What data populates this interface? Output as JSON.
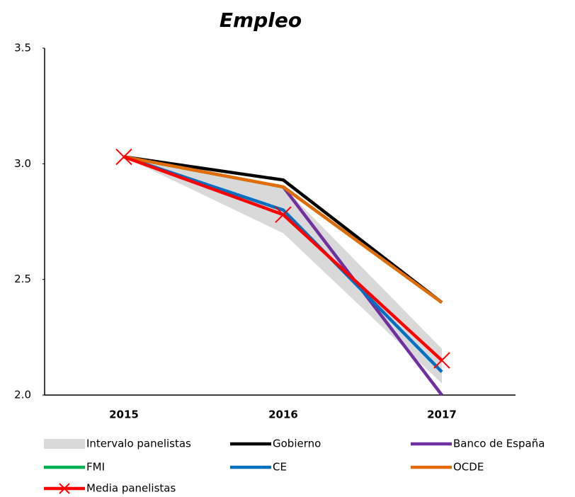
{
  "chart_data": {
    "type": "line",
    "title": "Empleo",
    "categories": [
      "2015",
      "2016",
      "2017"
    ],
    "band": {
      "name": "Intervalo panelistas",
      "color": "#d9d9d9",
      "low": [
        3.03,
        2.7,
        2.05
      ],
      "high": [
        3.03,
        2.9,
        2.2
      ]
    },
    "series": [
      {
        "name": "Gobierno",
        "color": "#000000",
        "values": [
          3.03,
          2.93,
          2.4
        ]
      },
      {
        "name": "Banco de España",
        "color": "#7030a0",
        "values": [
          null,
          2.9,
          2.0
        ]
      },
      {
        "name": "FMI",
        "color": "#00b050",
        "values": [
          3.03,
          2.9,
          2.4
        ]
      },
      {
        "name": "CE",
        "color": "#0070c0",
        "values": [
          3.03,
          2.8,
          2.1
        ]
      },
      {
        "name": "OCDE",
        "color": "#e36c09",
        "values": [
          3.03,
          2.9,
          2.4
        ]
      },
      {
        "name": "Media panelistas",
        "color": "#ff0000",
        "marker": "x",
        "values": [
          3.03,
          2.78,
          2.15
        ]
      }
    ],
    "ylim": [
      2,
      3.5
    ],
    "yticks": [
      {
        "value": 2,
        "label": "2.0"
      },
      2.5,
      {
        "value": 3,
        "label": "3.0"
      },
      3.5
    ],
    "grid": false
  }
}
